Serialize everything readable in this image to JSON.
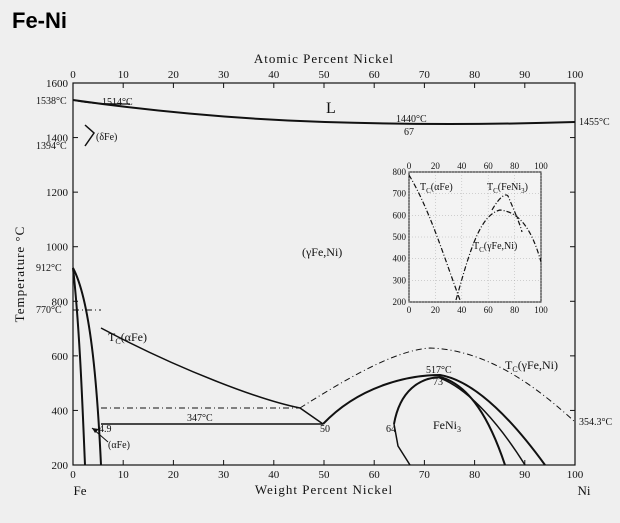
{
  "title": "Fe-Ni",
  "main_axes": {
    "top_title": "Atomic Percent Nickel",
    "bottom_title": "Weight Percent Nickel",
    "left_title": "Temperature °C",
    "x_ticks": [
      "0",
      "10",
      "20",
      "30",
      "40",
      "50",
      "60",
      "70",
      "80",
      "90",
      "100"
    ],
    "top_ticks": [
      "0",
      "10",
      "20",
      "30",
      "40",
      "50",
      "60",
      "70",
      "80",
      "90",
      "100"
    ],
    "y_ticks": [
      "200",
      "400",
      "600",
      "800",
      "1000",
      "1200",
      "1400",
      "1600"
    ],
    "x_range": [
      0,
      100
    ],
    "y_range": [
      200,
      1600
    ],
    "left_element": "Fe",
    "right_element": "Ni"
  },
  "annotations": {
    "fe_melt": "1538°C",
    "peritectic": "1514°C",
    "fe_delta": "1394°C",
    "delta_phase": "(δFe)",
    "liquid": "L",
    "min_temp": "1440°C",
    "min_comp": "67",
    "ni_melt": "1455°C",
    "fe_gamma": "912°C",
    "curie_fe": "770°C",
    "tc_alpha": "T",
    "tc_alpha_sub": "C",
    "tc_alpha_tail": "(αFe)",
    "gamma_phase": "(γFe,Ni)",
    "tc_gamma": "T",
    "tc_gamma_sub": "C",
    "tc_gamma_tail": "(γFe,Ni)",
    "fen_temp": "517°C",
    "fen_comp": "73",
    "eutectoid_temp": "347°C",
    "eutectoid_comp_left": "50",
    "eutectoid_comp_right": "64",
    "fen_phase": "FeNi",
    "fen_sub": "3",
    "alpha_phase": "(αFe)",
    "alpha_solubility": "4.9",
    "ni_curie": "354.3°C"
  },
  "inset": {
    "x_ticks": [
      "0",
      "20",
      "40",
      "60",
      "80",
      "100"
    ],
    "top_ticks": [
      "0",
      "20",
      "40",
      "60",
      "80",
      "100"
    ],
    "y_ticks": [
      "200",
      "300",
      "400",
      "500",
      "600",
      "700",
      "800"
    ],
    "x_range": [
      0,
      100
    ],
    "y_range": [
      200,
      800
    ],
    "label_alpha": "T",
    "label_alpha_sub": "C",
    "label_alpha_tail": "(αFe)",
    "label_fen": "T",
    "label_fen_sub": "C",
    "label_fen_tail": "(FeNi",
    "label_fen_sub2": "3",
    "label_fen_close": ")",
    "label_gamma": "T",
    "label_gamma_sub": "C",
    "label_gamma_tail": "(γFe,Ni)"
  }
}
